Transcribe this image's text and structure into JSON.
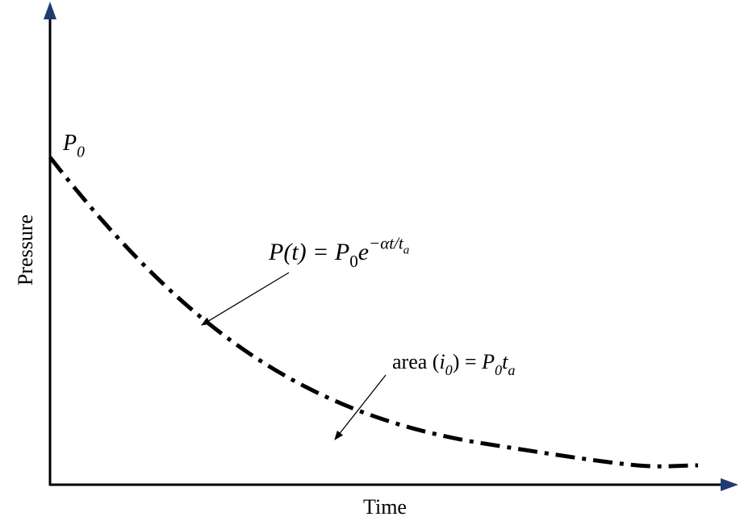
{
  "axes": {
    "y_label": "Pressure",
    "x_label": "Time"
  },
  "annotations": [
    {
      "parts": [
        {
          "text": "P",
          "style": "italic"
        },
        {
          "text": "0",
          "style": "sub-italic"
        }
      ]
    },
    {
      "parts": [
        {
          "text": "P(t) = P",
          "style": "italic"
        },
        {
          "text": "0",
          "style": "sub"
        },
        {
          "text": "e",
          "style": "italic"
        },
        {
          "text": "−αt/t",
          "style": "sup-italic"
        },
        {
          "text": "a",
          "style": "supsub-italic"
        }
      ]
    },
    {
      "parts": [
        {
          "text": "area (",
          "style": "normal"
        },
        {
          "text": "i",
          "style": "italic"
        },
        {
          "text": "0",
          "style": "sub-italic"
        },
        {
          "text": ") = ",
          "style": "normal"
        },
        {
          "text": "P",
          "style": "italic"
        },
        {
          "text": "0",
          "style": "sub-italic"
        },
        {
          "text": "t",
          "style": "italic"
        },
        {
          "text": "a",
          "style": "sub-italic"
        }
      ]
    }
  ]
}
